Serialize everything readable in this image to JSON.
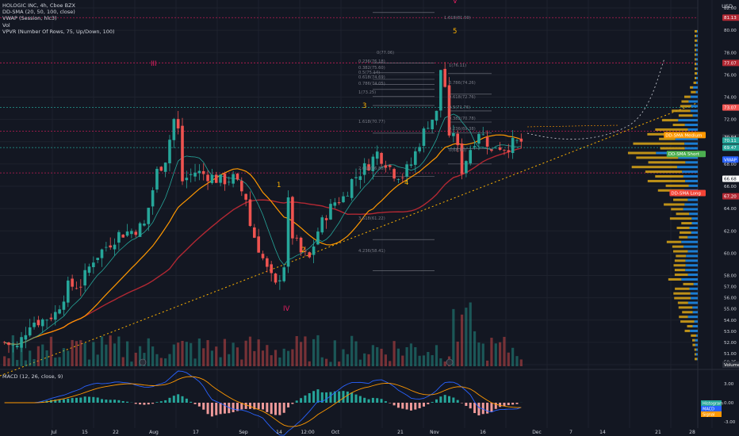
{
  "legend": {
    "symbol": "HOLOGIC INC, 4h, Cboe BZX",
    "sma": "DD-SMA (20, 50, 100, close)",
    "vwap": "VWAP (Session, hlc3)",
    "vol": "Vol",
    "vpvr": "VPVR (Number Of Rows, 75, Up/Down, 100)"
  },
  "macd_legend": "MACD (12, 26, close, 9)",
  "currency": "USD",
  "chart_data": {
    "type": "candlestick",
    "ylim": [
      50,
      82
    ],
    "yticks": [
      "82.00",
      "80.00",
      "78.00",
      "76.00",
      "74.00",
      "72.00",
      "70.00",
      "68.00",
      "66.00",
      "64.00",
      "62.00",
      "60.00",
      "58.00",
      "57.00",
      "56.00",
      "55.00",
      "54.00",
      "53.00",
      "52.00",
      "51.00",
      "50.25"
    ],
    "macd_ticks": [
      "3.00",
      "0.00",
      "-3.00"
    ],
    "xticks": [
      "Jul",
      "15",
      "22",
      "Aug",
      "17",
      "Sep",
      "14",
      "12:00",
      "Oct",
      "21",
      "Nov",
      "16",
      "Dec",
      "7",
      "14",
      "21",
      "28"
    ],
    "price_path": [
      [
        0,
        52.0
      ],
      [
        3,
        51.5
      ],
      [
        6,
        53.8
      ],
      [
        9,
        54.0
      ],
      [
        12,
        54.6
      ],
      [
        15,
        57.0
      ],
      [
        18,
        57.2
      ],
      [
        21,
        59.5
      ],
      [
        24,
        60.6
      ],
      [
        27,
        61.7
      ],
      [
        30,
        62.0
      ],
      [
        33,
        62.5
      ],
      [
        36,
        67.3
      ],
      [
        38,
        68.5
      ],
      [
        40,
        72.0
      ],
      [
        41,
        71.0
      ],
      [
        42,
        66.5
      ],
      [
        45,
        67.3
      ],
      [
        48,
        67.0
      ],
      [
        51,
        66.5
      ],
      [
        54,
        66.7
      ],
      [
        57,
        65.0
      ],
      [
        58,
        62.5
      ],
      [
        60,
        60.5
      ],
      [
        62,
        58.5
      ],
      [
        64,
        57.0
      ],
      [
        66,
        59.0
      ],
      [
        67,
        64.5
      ],
      [
        68,
        61.6
      ],
      [
        70,
        60.0
      ],
      [
        72,
        59.5
      ],
      [
        74,
        62.0
      ],
      [
        76,
        63.5
      ],
      [
        78,
        64.6
      ],
      [
        80,
        65.0
      ],
      [
        82,
        66.5
      ],
      [
        84,
        67.3
      ],
      [
        86,
        68.0
      ],
      [
        88,
        69.0
      ],
      [
        90,
        68.2
      ],
      [
        92,
        67.2
      ],
      [
        94,
        67.0
      ],
      [
        96,
        68.0
      ],
      [
        98,
        70.0
      ],
      [
        100,
        71.7
      ],
      [
        102,
        72.5
      ],
      [
        103,
        76.5
      ],
      [
        104,
        75.0
      ],
      [
        105,
        70.0
      ],
      [
        106,
        71.0
      ],
      [
        108,
        67.5
      ],
      [
        110,
        69.4
      ],
      [
        112,
        71.0
      ],
      [
        114,
        70.0
      ],
      [
        115,
        69.0
      ],
      [
        116,
        69.7
      ],
      [
        118,
        69.5
      ],
      [
        120,
        69.8
      ],
      [
        122,
        70.0
      ]
    ],
    "annotations": {
      "waves": [
        {
          "t": "III",
          "color": "#e91e63"
        },
        {
          "t": "IV",
          "color": "#e91e63"
        },
        {
          "t": "V",
          "color": "#e91e63"
        },
        {
          "t": "1",
          "color": "#ffb300"
        },
        {
          "t": "2",
          "color": "#ffb300"
        },
        {
          "t": "3",
          "color": "#ffb300"
        },
        {
          "t": "4",
          "color": "#ffb300"
        },
        {
          "t": "5",
          "color": "#ffb300"
        }
      ],
      "fib_labels": [
        "1.618(81.59)",
        "0(77.06)",
        "0.236(76.18)",
        "0.382(75.60)",
        "0.5(75.14)",
        "0.618(74.69)",
        "0.786(74.05)",
        "1(73.25)",
        "1.618(70.77)",
        "2.618(66.88)",
        "3.618(61.22)",
        "4.236(58.41)",
        "1(76.11)",
        "0.786(74.26)",
        "0.618(72.76)",
        "0.5(71.76)",
        "0.382(70.78)",
        "0.236(69.38)",
        "0(68.00)"
      ],
      "right_tags": [
        {
          "t": "81.13",
          "bg": "#b22833",
          "color": "#ffffff",
          "y": 81.13
        },
        {
          "t": "77.07",
          "bg": "#b22833",
          "color": "#ffffff",
          "y": 77.07
        },
        {
          "t": "73.07",
          "bg": "#ef5350",
          "color": "#ffffff",
          "y": 73.07
        },
        {
          "t": "DD-SMA Medium",
          "bg": "#ff9800",
          "color": "#ffffff",
          "y": 70.6
        },
        {
          "t": "70.94",
          "bg": "#2a2e39",
          "color": "#ffffff",
          "y": 70.4
        },
        {
          "t": "70.11",
          "bg": "#26a69a",
          "color": "#ffffff",
          "y": 70.11
        },
        {
          "t": "69.47",
          "bg": "#26a69a",
          "color": "#ffffff",
          "y": 69.47
        },
        {
          "t": "DD-SMA Short",
          "bg": "#4caf50",
          "color": "#ffffff",
          "y": 68.9
        },
        {
          "t": "VWAP",
          "bg": "#2962ff",
          "color": "#ffffff",
          "y": 68.4
        },
        {
          "t": "66.68",
          "bg": "#ffffff",
          "color": "#131722",
          "y": 66.68
        },
        {
          "t": "DD-SMA Long",
          "bg": "#f44336",
          "color": "#ffffff",
          "y": 65.4
        },
        {
          "t": "67.20",
          "bg": "#b22833",
          "color": "#ffffff",
          "y": 65.1
        },
        {
          "t": "Volume",
          "bg": "#2a2e39",
          "color": "#ffffff",
          "y": 50.0
        }
      ],
      "macd_tags": [
        {
          "t": "Histogram",
          "bg": "#26a69a"
        },
        {
          "t": "MACD",
          "bg": "#2962ff"
        },
        {
          "t": "Signal",
          "bg": "#ff9800"
        }
      ]
    },
    "colors": {
      "up": "#26a69a",
      "down": "#ef5350",
      "sma_short": "#26a69a",
      "sma_medium": "#ff9800",
      "sma_long": "#b22833",
      "vp_up": "#d29e17",
      "vp_down": "#1e88e5"
    }
  }
}
